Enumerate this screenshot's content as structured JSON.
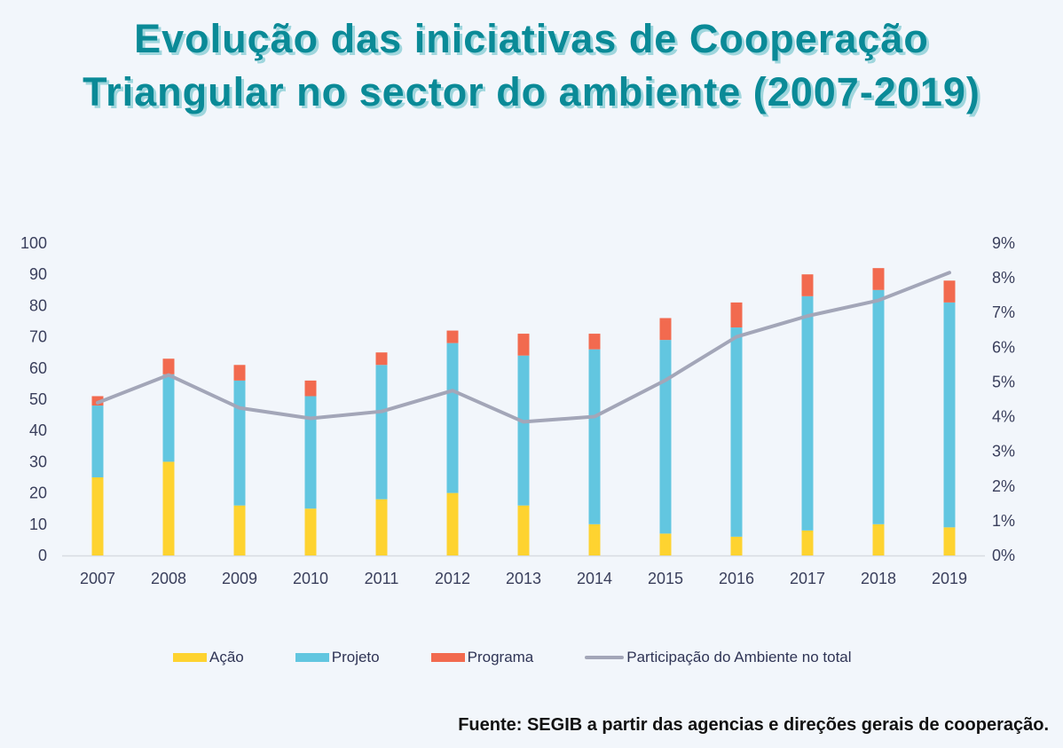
{
  "title": {
    "line1": "Evolução das iniciativas de Cooperação",
    "line2": "Triangular no sector do ambiente (2007-2019)"
  },
  "source": "Fuente: SEGIB a partir das agencias e direções gerais de cooperação.",
  "colors": {
    "acao": "#fed330",
    "projeto": "#62c6e0",
    "programa": "#f26a4f",
    "line": "#a3a6b8",
    "axis": "#d7dbe2",
    "title": "#0a8a97"
  },
  "legend": [
    {
      "key": "acao",
      "label": "Ação"
    },
    {
      "key": "projeto",
      "label": "Projeto"
    },
    {
      "key": "programa",
      "label": "Programa"
    },
    {
      "key": "line",
      "label": "Participação do Ambiente no total"
    }
  ],
  "chart_data": {
    "type": "bar",
    "stacked": true,
    "title": "Evolução das iniciativas de Cooperação Triangular no sector do ambiente (2007-2019)",
    "categories": [
      "2007",
      "2008",
      "2009",
      "2010",
      "2011",
      "2012",
      "2013",
      "2014",
      "2015",
      "2016",
      "2017",
      "2018",
      "2019"
    ],
    "series": [
      {
        "name": "Ação",
        "type": "bar",
        "axis": "left",
        "values": [
          25,
          30,
          16,
          15,
          18,
          20,
          16,
          10,
          7,
          6,
          8,
          10,
          9
        ]
      },
      {
        "name": "Projeto",
        "type": "bar",
        "axis": "left",
        "values": [
          23,
          28,
          40,
          36,
          43,
          48,
          48,
          56,
          62,
          67,
          75,
          75,
          72
        ]
      },
      {
        "name": "Programa",
        "type": "bar",
        "axis": "left",
        "values": [
          3,
          5,
          5,
          5,
          4,
          4,
          7,
          5,
          7,
          8,
          7,
          7,
          7
        ]
      },
      {
        "name": "Participação do Ambiente no total",
        "type": "line",
        "axis": "right",
        "values": [
          4.4,
          5.2,
          4.25,
          3.95,
          4.15,
          4.75,
          3.85,
          4.0,
          5.05,
          6.3,
          6.9,
          7.35,
          8.15
        ]
      }
    ],
    "y_left": {
      "ylim": [
        0,
        100
      ],
      "ticks": [
        "0",
        "10",
        "20",
        "30",
        "40",
        "50",
        "60",
        "70",
        "80",
        "90",
        "100"
      ]
    },
    "y_right": {
      "ylim": [
        0,
        9
      ],
      "ticks": [
        "0%",
        "1%",
        "2%",
        "3%",
        "4%",
        "5%",
        "6%",
        "7%",
        "8%",
        "9%"
      ]
    },
    "xlabel": "",
    "ylabel": "",
    "grid": false,
    "legend_position": "bottom"
  }
}
